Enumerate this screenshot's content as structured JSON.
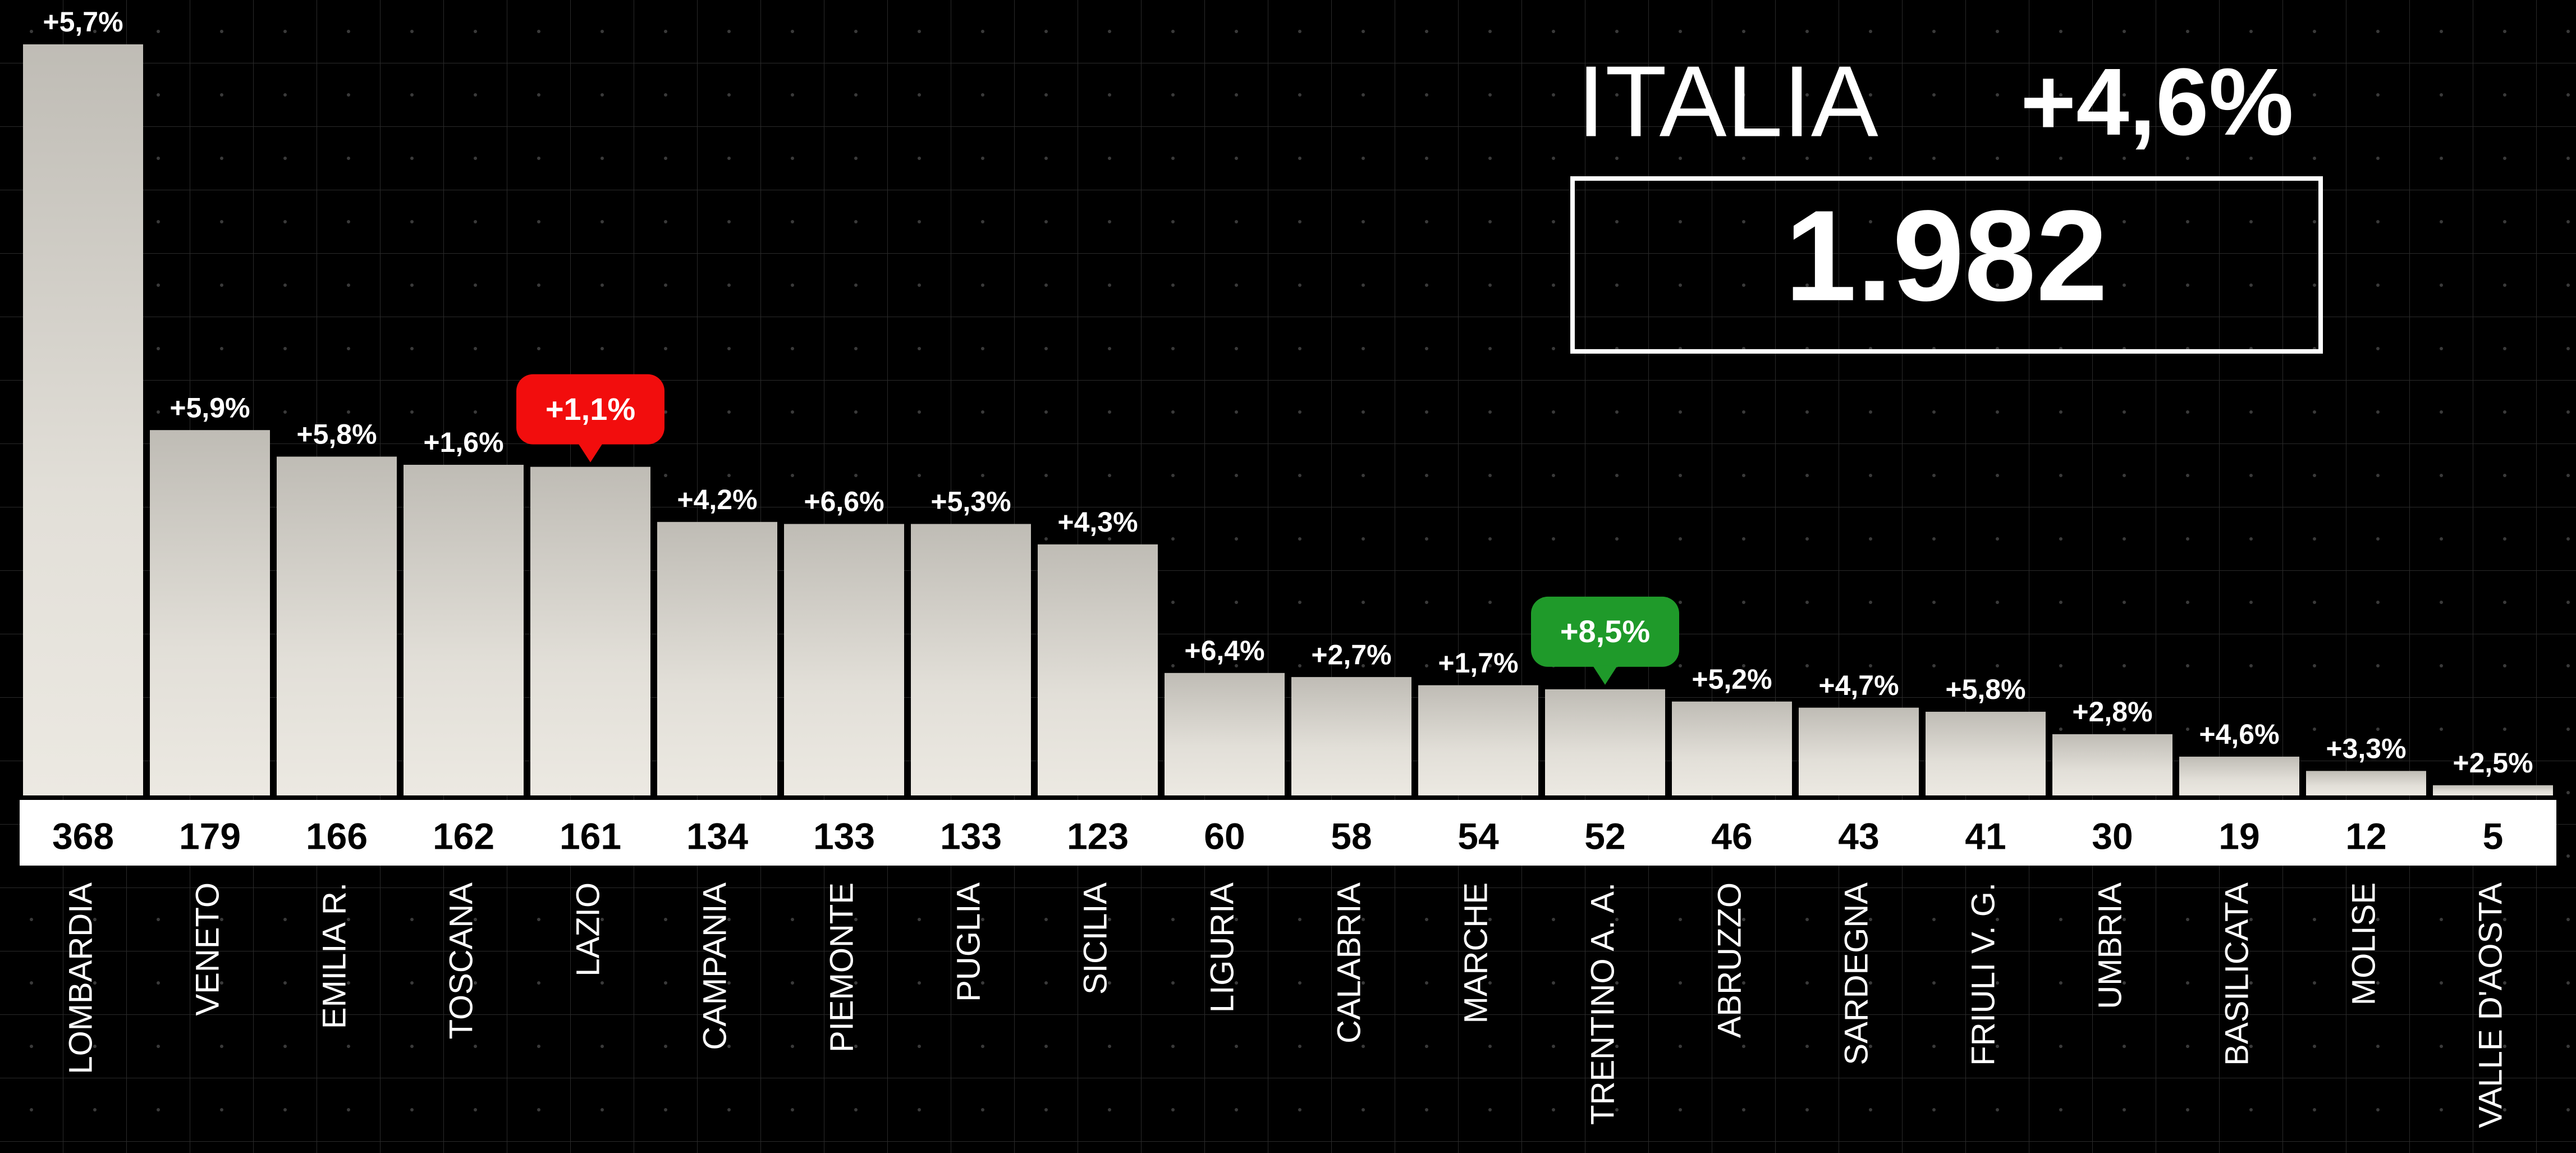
{
  "chart_data": {
    "type": "bar",
    "categories": [
      "LOMBARDIA",
      "VENETO",
      "EMILIA R.",
      "TOSCANA",
      "LAZIO",
      "CAMPANIA",
      "PIEMONTE",
      "PUGLIA",
      "SICILIA",
      "LIGURIA",
      "CALABRIA",
      "MARCHE",
      "TRENTINO A. A.",
      "ABRUZZO",
      "SARDEGNA",
      "FRIULI V. G.",
      "UMBRIA",
      "BASILICATA",
      "MOLISE",
      "VALLE D'AOSTA"
    ],
    "values": [
      368,
      179,
      166,
      162,
      161,
      134,
      133,
      133,
      123,
      60,
      58,
      54,
      52,
      46,
      43,
      41,
      30,
      19,
      12,
      5
    ],
    "change_labels": [
      "+5,7%",
      "+5,9%",
      "+5,8%",
      "+1,6%",
      "+1,1%",
      "+4,2%",
      "+6,6%",
      "+5,3%",
      "+4,3%",
      "+6,4%",
      "+2,7%",
      "+1,7%",
      "+8,5%",
      "+5,2%",
      "+4,7%",
      "+5,8%",
      "+2,8%",
      "+4,6%",
      "+3,3%",
      "+2,5%"
    ],
    "badge_colors": [
      null,
      null,
      null,
      null,
      "#f20d0d",
      null,
      null,
      null,
      null,
      null,
      null,
      null,
      "#1f9a2a",
      null,
      null,
      null,
      null,
      null,
      null,
      null
    ],
    "color": "#d9d6cf",
    "total": {
      "label": "ITALIA",
      "change": "+4,6%",
      "value": "1.982"
    }
  }
}
